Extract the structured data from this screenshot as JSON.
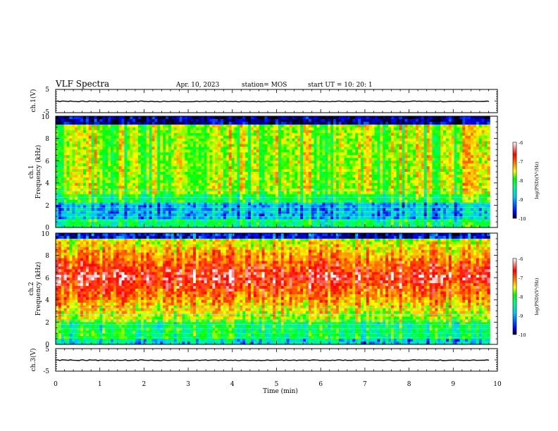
{
  "header": {
    "title": "VLF Spectra",
    "date": "Apr. 10, 2023",
    "station": "station= MOS",
    "start": "start  UT =   10: 20: 1"
  },
  "chart_data": [
    {
      "id": "ch1_waveform",
      "type": "line",
      "ylabel": "ch.1(V)",
      "ylim": [
        -5,
        5
      ],
      "yticks": [
        "5",
        "-5"
      ],
      "xlim": [
        0,
        10
      ],
      "baseline": 0,
      "data_end": 9.83
    },
    {
      "id": "ch1_spectrogram",
      "type": "heatmap",
      "ylabel_lines": [
        "ch.1",
        "Frequency (kHz)"
      ],
      "ylim": [
        0,
        10
      ],
      "yticks": [
        "0",
        "2",
        "4",
        "6",
        "8",
        "10"
      ],
      "xlim": [
        0,
        10
      ],
      "data_end": 9.83,
      "colorbar": {
        "label": "log(PSD)(V²/Hz)",
        "ticks": [
          "-6",
          "-7",
          "-8",
          "-9",
          "-10"
        ],
        "range": [
          -10,
          -6
        ]
      }
    },
    {
      "id": "ch2_spectrogram",
      "type": "heatmap",
      "ylabel_lines": [
        "ch.2",
        "Frequency (kHz)"
      ],
      "ylim": [
        0,
        10
      ],
      "yticks": [
        "0",
        "2",
        "4",
        "6",
        "8",
        "10"
      ],
      "xlim": [
        0,
        10
      ],
      "data_end": 9.83,
      "colorbar": {
        "label": "log(PSD)(V²/Hz)",
        "ticks": [
          "-6",
          "-7",
          "-8",
          "-9",
          "-10"
        ],
        "range": [
          -10,
          -6
        ]
      }
    },
    {
      "id": "ch3_waveform",
      "type": "line",
      "ylabel": "ch.3(V)",
      "ylim": [
        -5,
        5
      ],
      "yticks": [
        "5",
        "-5"
      ],
      "xlim": [
        0,
        10
      ],
      "baseline": 0,
      "data_end": 9.83
    }
  ],
  "xaxis": {
    "label": "Time (min)",
    "ticks": [
      "0",
      "1",
      "2",
      "3",
      "4",
      "5",
      "6",
      "7",
      "8",
      "9",
      "10"
    ]
  },
  "colors": {
    "colormap": [
      "#000000",
      "#0000ff",
      "#00c8ff",
      "#00ff80",
      "#00ff00",
      "#ffff00",
      "#ff8000",
      "#ff0000",
      "#ffffff"
    ]
  }
}
